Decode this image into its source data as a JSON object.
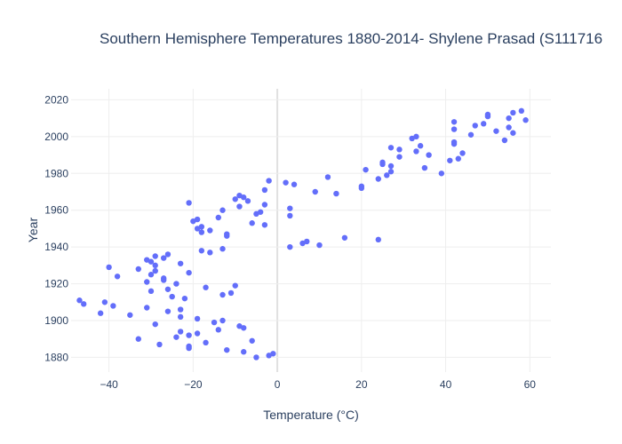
{
  "chart_data": {
    "type": "scatter",
    "title": "Southern Hemisphere Temperatures 1880-2014- Shylene Prasad (S111716",
    "xlabel": "Temperature (°C)",
    "ylabel": "Year",
    "xlim": [
      -49,
      65
    ],
    "ylim": [
      1872,
      2026
    ],
    "x_ticks": [
      -40,
      -20,
      0,
      20,
      40,
      60
    ],
    "y_ticks": [
      1880,
      1900,
      1920,
      1940,
      1960,
      1980,
      2000,
      2020
    ],
    "x_tick_labels": [
      "−40",
      "−20",
      "0",
      "20",
      "40",
      "60"
    ],
    "y_tick_labels": [
      "1880",
      "1900",
      "1920",
      "1940",
      "1960",
      "1980",
      "2000",
      "2020"
    ],
    "grid": true,
    "marker_color": "#636efa",
    "points": [
      {
        "x": -1,
        "y": 1882
      },
      {
        "x": -2,
        "y": 1881
      },
      {
        "x": -5,
        "y": 1880
      },
      {
        "x": -8,
        "y": 1883
      },
      {
        "x": -12,
        "y": 1884
      },
      {
        "x": -21,
        "y": 1885
      },
      {
        "x": -21,
        "y": 1886
      },
      {
        "x": -28,
        "y": 1887
      },
      {
        "x": -17,
        "y": 1888
      },
      {
        "x": -6,
        "y": 1889
      },
      {
        "x": -33,
        "y": 1890
      },
      {
        "x": -24,
        "y": 1891
      },
      {
        "x": -21,
        "y": 1892
      },
      {
        "x": -19,
        "y": 1893
      },
      {
        "x": -23,
        "y": 1894
      },
      {
        "x": -14,
        "y": 1895
      },
      {
        "x": -8,
        "y": 1896
      },
      {
        "x": -9,
        "y": 1897
      },
      {
        "x": -29,
        "y": 1898
      },
      {
        "x": -15,
        "y": 1899
      },
      {
        "x": -13,
        "y": 1900
      },
      {
        "x": -19,
        "y": 1901
      },
      {
        "x": -23,
        "y": 1902
      },
      {
        "x": -35,
        "y": 1903
      },
      {
        "x": -42,
        "y": 1904
      },
      {
        "x": -26,
        "y": 1905
      },
      {
        "x": -23,
        "y": 1906
      },
      {
        "x": -31,
        "y": 1907
      },
      {
        "x": -39,
        "y": 1908
      },
      {
        "x": -46,
        "y": 1909
      },
      {
        "x": -41,
        "y": 1910
      },
      {
        "x": -47,
        "y": 1911
      },
      {
        "x": -22,
        "y": 1912
      },
      {
        "x": -25,
        "y": 1913
      },
      {
        "x": -13,
        "y": 1914
      },
      {
        "x": -11,
        "y": 1915
      },
      {
        "x": -30,
        "y": 1916
      },
      {
        "x": -26,
        "y": 1917
      },
      {
        "x": -17,
        "y": 1918
      },
      {
        "x": -10,
        "y": 1919
      },
      {
        "x": -24,
        "y": 1920
      },
      {
        "x": -31,
        "y": 1921
      },
      {
        "x": -27,
        "y": 1922
      },
      {
        "x": -27,
        "y": 1923
      },
      {
        "x": -38,
        "y": 1924
      },
      {
        "x": -30,
        "y": 1925
      },
      {
        "x": -21,
        "y": 1926
      },
      {
        "x": -29,
        "y": 1927
      },
      {
        "x": -33,
        "y": 1928
      },
      {
        "x": -40,
        "y": 1929
      },
      {
        "x": -29,
        "y": 1930
      },
      {
        "x": -23,
        "y": 1931
      },
      {
        "x": -30,
        "y": 1932
      },
      {
        "x": -31,
        "y": 1933
      },
      {
        "x": -27,
        "y": 1934
      },
      {
        "x": -29,
        "y": 1935
      },
      {
        "x": -26,
        "y": 1936
      },
      {
        "x": -16,
        "y": 1937
      },
      {
        "x": -18,
        "y": 1938
      },
      {
        "x": -13,
        "y": 1939
      },
      {
        "x": 3,
        "y": 1940
      },
      {
        "x": 10,
        "y": 1941
      },
      {
        "x": 6,
        "y": 1942
      },
      {
        "x": 7,
        "y": 1943
      },
      {
        "x": 24,
        "y": 1944
      },
      {
        "x": 16,
        "y": 1945
      },
      {
        "x": -12,
        "y": 1946
      },
      {
        "x": -12,
        "y": 1947
      },
      {
        "x": -18,
        "y": 1948
      },
      {
        "x": -16,
        "y": 1949
      },
      {
        "x": -19,
        "y": 1950
      },
      {
        "x": -18,
        "y": 1951
      },
      {
        "x": -3,
        "y": 1952
      },
      {
        "x": -6,
        "y": 1953
      },
      {
        "x": -20,
        "y": 1954
      },
      {
        "x": -19,
        "y": 1955
      },
      {
        "x": -14,
        "y": 1956
      },
      {
        "x": 3,
        "y": 1957
      },
      {
        "x": -5,
        "y": 1958
      },
      {
        "x": -4,
        "y": 1959
      },
      {
        "x": -13,
        "y": 1960
      },
      {
        "x": 3,
        "y": 1961
      },
      {
        "x": -9,
        "y": 1962
      },
      {
        "x": -3,
        "y": 1963
      },
      {
        "x": -21,
        "y": 1964
      },
      {
        "x": -7,
        "y": 1965
      },
      {
        "x": -10,
        "y": 1966
      },
      {
        "x": -8,
        "y": 1967
      },
      {
        "x": -9,
        "y": 1968
      },
      {
        "x": 14,
        "y": 1969
      },
      {
        "x": 9,
        "y": 1970
      },
      {
        "x": -3,
        "y": 1971
      },
      {
        "x": 20,
        "y": 1972
      },
      {
        "x": 20,
        "y": 1973
      },
      {
        "x": 4,
        "y": 1974
      },
      {
        "x": 2,
        "y": 1975
      },
      {
        "x": -2,
        "y": 1976
      },
      {
        "x": 24,
        "y": 1977
      },
      {
        "x": 12,
        "y": 1978
      },
      {
        "x": 26,
        "y": 1979
      },
      {
        "x": 39,
        "y": 1980
      },
      {
        "x": 27,
        "y": 1981
      },
      {
        "x": 21,
        "y": 1982
      },
      {
        "x": 35,
        "y": 1983
      },
      {
        "x": 27,
        "y": 1984
      },
      {
        "x": 25,
        "y": 1985
      },
      {
        "x": 25,
        "y": 1986
      },
      {
        "x": 41,
        "y": 1987
      },
      {
        "x": 43,
        "y": 1988
      },
      {
        "x": 29,
        "y": 1989
      },
      {
        "x": 36,
        "y": 1990
      },
      {
        "x": 44,
        "y": 1991
      },
      {
        "x": 33,
        "y": 1992
      },
      {
        "x": 29,
        "y": 1993
      },
      {
        "x": 27,
        "y": 1994
      },
      {
        "x": 34,
        "y": 1995
      },
      {
        "x": 42,
        "y": 1996
      },
      {
        "x": 42,
        "y": 1997
      },
      {
        "x": 54,
        "y": 1998
      },
      {
        "x": 32,
        "y": 1999
      },
      {
        "x": 33,
        "y": 2000
      },
      {
        "x": 46,
        "y": 2001
      },
      {
        "x": 56,
        "y": 2002
      },
      {
        "x": 52,
        "y": 2003
      },
      {
        "x": 42,
        "y": 2004
      },
      {
        "x": 55,
        "y": 2005
      },
      {
        "x": 47,
        "y": 2006
      },
      {
        "x": 49,
        "y": 2007
      },
      {
        "x": 42,
        "y": 2008
      },
      {
        "x": 59,
        "y": 2009
      },
      {
        "x": 55,
        "y": 2010
      },
      {
        "x": 50,
        "y": 2011
      },
      {
        "x": 50,
        "y": 2012
      },
      {
        "x": 56,
        "y": 2013
      },
      {
        "x": 58,
        "y": 2014
      }
    ]
  }
}
